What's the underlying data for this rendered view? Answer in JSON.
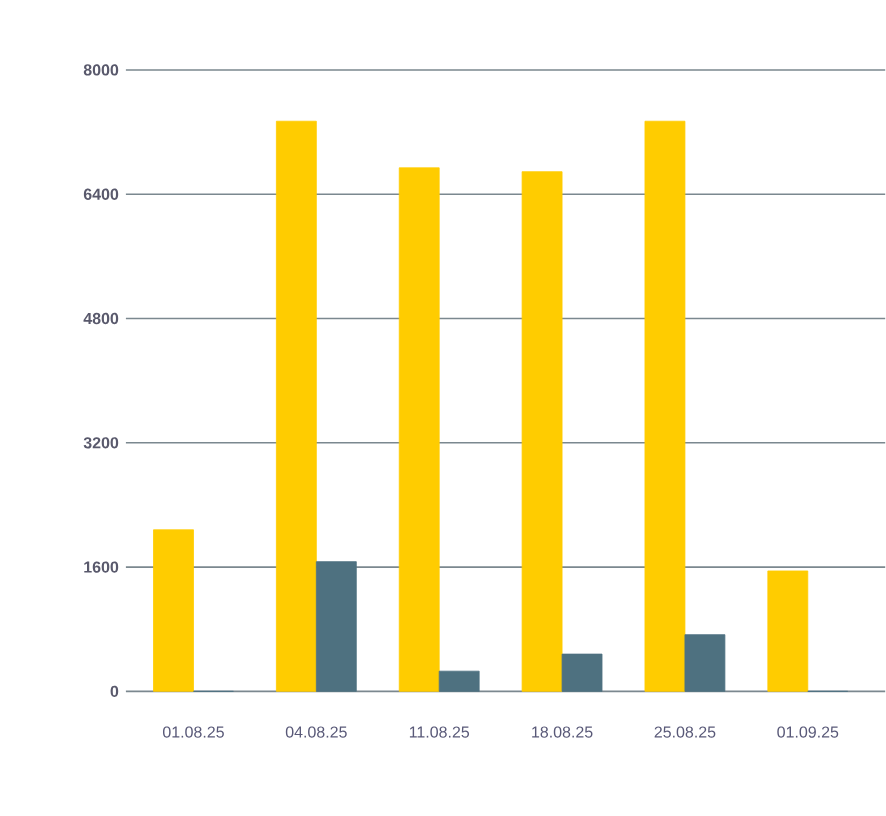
{
  "chart_data": {
    "type": "bar",
    "categories": [
      "01.08.25",
      "04.08.25",
      "11.08.25",
      "18.08.25",
      "25.08.25",
      "01.09.25"
    ],
    "series": [
      {
        "color": "#ffcc00",
        "values": [
          2080,
          7340,
          6740,
          6690,
          7340,
          1550
        ]
      },
      {
        "color": "#4e7180",
        "values": [
          0,
          1670,
          260,
          480,
          730,
          0
        ]
      }
    ],
    "ylim": [
      0,
      8000
    ],
    "yticks": [
      0,
      1600,
      3200,
      4800,
      6400,
      8000
    ],
    "grid": "y"
  }
}
